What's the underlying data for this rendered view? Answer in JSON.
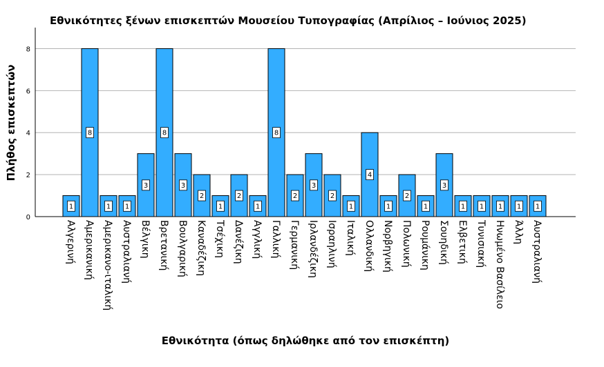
{
  "chart_data": {
    "type": "bar",
    "title": "Εθνικότητες ξένων επισκεπτών Μουσείου Τυπογραφίας (Απρίλιος – Ιούνιος 2025)",
    "xlabel": "Εθνικότητα (όπως δηλώθηκε από τον επισκέπτη)",
    "ylabel": "Πλήθος επισκεπτών",
    "ylim": [
      0,
      9
    ],
    "yticks": [
      0,
      2,
      4,
      6,
      8
    ],
    "grid": true,
    "bar_color": "#33adff",
    "categories": [
      "Αλγερινή",
      "Αμερικανική",
      "Αμερικανο-ιταλική",
      "Αυστραλιανή",
      "Βέλγικη",
      "Βρετανική",
      "Βουλγαρική",
      "Καναδέζικη",
      "Τσέχικη",
      "Δανέζικη",
      "Αγγλική",
      "Γαλλική",
      "Γερμανική",
      "Ιρλανδέζικη",
      "Ισραηλινή",
      "Ιταλική",
      "Ολλανδική",
      "Νορβηγική",
      "Πολωνική",
      "Ρουμάνικη",
      "Σουηδική",
      "Ελβετική",
      "Τυνισιακή",
      "Ηνωμένο Βασίλειο",
      "Άλλη",
      "Αυστραλιανή"
    ],
    "values": [
      1,
      8,
      1,
      1,
      3,
      8,
      3,
      2,
      1,
      2,
      1,
      8,
      2,
      3,
      2,
      1,
      4,
      1,
      2,
      1,
      3,
      1,
      1,
      1,
      1,
      1
    ]
  }
}
